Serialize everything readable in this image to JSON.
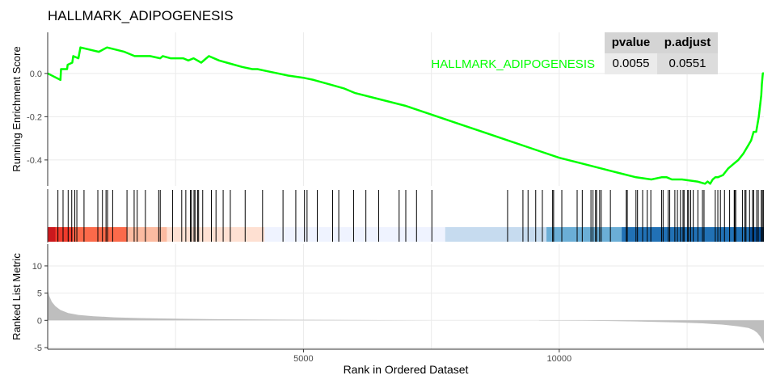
{
  "title": "HALLMARK_ADIPOGENESIS",
  "colors": {
    "curve": "#00ff00",
    "grid": "#ebebeb",
    "metric_fill": "#bebebe"
  },
  "table": {
    "headers": [
      "pvalue",
      "p.adjust"
    ],
    "row_label": "HALLMARK_ADIPOGENESIS",
    "pvalue": "0.0055",
    "padjust": "0.0551"
  },
  "chart_data": [
    {
      "type": "line",
      "ylabel": "Running Enrichment Score",
      "xlim": [
        0,
        14000
      ],
      "ylim": [
        -0.52,
        0.19
      ],
      "yticks": [
        0.0,
        -0.2,
        -0.4
      ],
      "ytick_labels": [
        "0.0",
        "-0.2",
        "-0.4"
      ],
      "x": [
        0,
        250,
        260,
        380,
        390,
        480,
        500,
        600,
        640,
        1000,
        1160,
        1500,
        1700,
        1850,
        2000,
        2200,
        2250,
        2400,
        2650,
        2750,
        2850,
        3000,
        3150,
        3350,
        3500,
        3800,
        4000,
        4100,
        4300,
        4500,
        4700,
        5000,
        5200,
        5500,
        5800,
        6000,
        6500,
        7000,
        7500,
        8000,
        8500,
        9000,
        9500,
        10000,
        10500,
        11000,
        11500,
        11800,
        12000,
        12100,
        12200,
        12400,
        12700,
        12850,
        12900,
        12950,
        13000,
        13050,
        13100,
        13200,
        13300,
        13400,
        13500,
        13600,
        13700,
        13750,
        13800,
        13850,
        13900,
        13950,
        13960,
        13980,
        14000
      ],
      "y": [
        0.0,
        -0.03,
        0.02,
        0.02,
        0.04,
        0.05,
        0.08,
        0.07,
        0.12,
        0.1,
        0.12,
        0.1,
        0.08,
        0.08,
        0.08,
        0.07,
        0.08,
        0.07,
        0.07,
        0.06,
        0.07,
        0.05,
        0.08,
        0.06,
        0.05,
        0.03,
        0.02,
        0.02,
        0.01,
        0.0,
        -0.01,
        -0.02,
        -0.03,
        -0.05,
        -0.07,
        -0.09,
        -0.12,
        -0.15,
        -0.19,
        -0.23,
        -0.27,
        -0.31,
        -0.35,
        -0.39,
        -0.42,
        -0.45,
        -0.48,
        -0.49,
        -0.48,
        -0.48,
        -0.49,
        -0.49,
        -0.5,
        -0.51,
        -0.5,
        -0.51,
        -0.49,
        -0.48,
        -0.48,
        -0.47,
        -0.44,
        -0.42,
        -0.4,
        -0.37,
        -0.33,
        -0.31,
        -0.27,
        -0.27,
        -0.2,
        -0.1,
        -0.05,
        0.0,
        0.0
      ]
    },
    {
      "type": "scatter",
      "subtype": "gene-hit-ticks",
      "hit_ranks": [
        200,
        300,
        400,
        470,
        530,
        570,
        710,
        980,
        1070,
        1140,
        1170,
        1270,
        1550,
        1690,
        1750,
        1910,
        2170,
        2200,
        2440,
        2620,
        2700,
        2790,
        2810,
        2860,
        2880,
        2930,
        2950,
        3030,
        3200,
        3290,
        3430,
        3570,
        3860,
        4200,
        4600,
        4850,
        5020,
        5070,
        5270,
        5570,
        5690,
        5980,
        6220,
        6470,
        6870,
        7000,
        7210,
        7510,
        8990,
        9290,
        9390,
        9540,
        9670,
        9870,
        9890,
        10050,
        10350,
        10450,
        10620,
        10660,
        10710,
        10730,
        10790,
        10820,
        11000,
        11310,
        11330,
        11500,
        11530,
        11630,
        11720,
        11790,
        12000,
        12030,
        12130,
        12160,
        12260,
        12310,
        12370,
        12420,
        12440,
        12510,
        12530,
        12570,
        12620,
        12710,
        12800,
        12830,
        13050,
        13100,
        13150,
        13230,
        13330,
        13420,
        13430,
        13450,
        13580,
        13630,
        13650,
        13720,
        13780,
        13800,
        13860,
        13890,
        13950,
        13970,
        13990
      ],
      "color_bands": [
        {
          "from": 0,
          "to": 150,
          "color": "#cb181d"
        },
        {
          "from": 150,
          "to": 500,
          "color": "#ef3b2c"
        },
        {
          "from": 500,
          "to": 1550,
          "color": "#fb6a4a"
        },
        {
          "from": 1550,
          "to": 2330,
          "color": "#fcbba1"
        },
        {
          "from": 2330,
          "to": 4240,
          "color": "#fee0d2"
        },
        {
          "from": 4240,
          "to": 7770,
          "color": "#eff3ff"
        },
        {
          "from": 7770,
          "to": 9750,
          "color": "#c6dbef"
        },
        {
          "from": 9750,
          "to": 11220,
          "color": "#6baed6"
        },
        {
          "from": 11220,
          "to": 13720,
          "color": "#2171b5"
        },
        {
          "from": 13720,
          "to": 14000,
          "color": "#08519c"
        }
      ]
    },
    {
      "type": "area",
      "xlabel": "Rank in Ordered Dataset",
      "ylabel": "Ranked List Metric",
      "ylim": [
        -5.3,
        14
      ],
      "yticks": [
        10,
        5,
        0,
        -5
      ],
      "ytick_labels": [
        "10",
        "5",
        "0",
        "-5"
      ],
      "xticks": [
        5000,
        10000
      ],
      "xtick_labels": [
        "5000",
        "10000"
      ],
      "x": [
        0,
        30,
        80,
        150,
        250,
        400,
        600,
        900,
        1300,
        1800,
        2500,
        3500,
        5000,
        6500,
        7500,
        8800,
        8810,
        9600,
        9610,
        10500,
        11500,
        12300,
        12800,
        13200,
        13500,
        13700,
        13800,
        13870,
        13930,
        13970,
        14000
      ],
      "y": [
        5.7,
        4.5,
        3.4,
        2.6,
        1.9,
        1.35,
        1.0,
        0.75,
        0.55,
        0.42,
        0.3,
        0.2,
        0.1,
        0.05,
        0.02,
        0.0,
        0.0,
        0.0,
        -0.03,
        -0.08,
        -0.2,
        -0.38,
        -0.55,
        -0.78,
        -1.1,
        -1.4,
        -1.8,
        -2.3,
        -3.0,
        -3.7,
        -4.3
      ]
    }
  ]
}
